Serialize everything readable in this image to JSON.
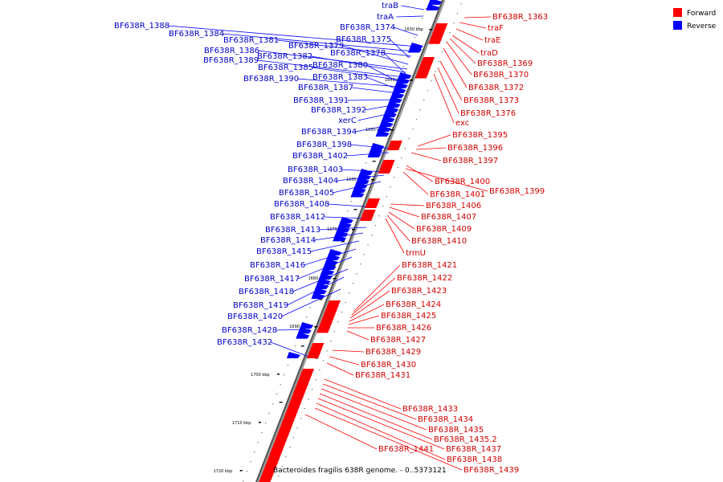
{
  "legend": {
    "forward": {
      "label": "Forward",
      "color": "#ff0000"
    },
    "reverse": {
      "label": "Reverse",
      "color": "#0000ff"
    }
  },
  "caption": "Bacteroides fragilis 638R genome. - 0..5373121",
  "ticks": [
    "1630 kbp",
    "1640 kbp",
    "1650 kbp",
    "1660 kbp",
    "1670 kbp",
    "1680 kbp",
    "1690 kbp",
    "1700 kbp",
    "1710 kbp",
    "1720 kbp"
  ],
  "reverse_genes": [
    "traB",
    "traA",
    "BF638R_1374",
    "BF638R_1388",
    "BF638R_1384",
    "BF638R_1381",
    "BF638R_1375",
    "BF638R_1379",
    "BF638R_1386",
    "BF638R_1382",
    "BF638R_1378",
    "BF638R_1389",
    "BF638R_1385",
    "BF638R_1380",
    "BF638R_1390",
    "BF638R_1383",
    "BF638R_1387",
    "BF638R_1391",
    "BF638R_1392",
    "xerC",
    "BF638R_1394",
    "BF638R_1398",
    "BF638R_1402",
    "BF638R_1403",
    "BF638R_1404",
    "BF638R_1405",
    "BF638R_1408",
    "BF638R_1412",
    "BF638R_1413",
    "BF638R_1414",
    "BF638R_1415",
    "BF638R_1416",
    "BF638R_1417",
    "BF638R_1418",
    "BF638R_1419",
    "BF638R_1420",
    "BF638R_1428",
    "BF638R_1432"
  ],
  "forward_genes": [
    "BF638R_1363",
    "traF",
    "traE",
    "traD",
    "BF638R_1369",
    "BF638R_1370",
    "BF638R_1372",
    "BF638R_1373",
    "BF638R_1376",
    "exc",
    "BF638R_1395",
    "BF638R_1396",
    "BF638R_1397",
    "BF638R_1400",
    "BF638R_1399",
    "BF638R_1401",
    "BF638R_1406",
    "BF638R_1407",
    "BF638R_1409",
    "BF638R_1410",
    "trmU",
    "BF638R_1421",
    "BF638R_1422",
    "BF638R_1423",
    "BF638R_1424",
    "BF638R_1425",
    "BF638R_1426",
    "BF638R_1427",
    "BF638R_1429",
    "BF638R_1430",
    "BF638R_1431",
    "BF638R_1433",
    "BF638R_1434",
    "BF638R_1435",
    "BF638R_1435.2",
    "BF638R_1437",
    "BF638R_1441",
    "BF638R_1438",
    "BF638R_1439"
  ]
}
